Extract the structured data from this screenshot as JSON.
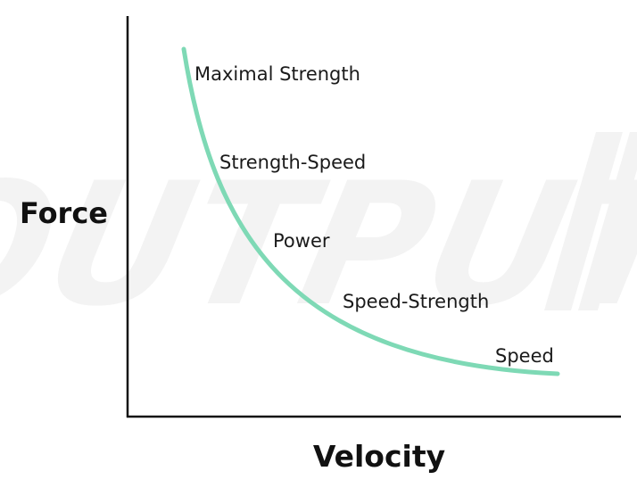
{
  "chart_data": {
    "type": "line",
    "title": "",
    "xlabel": "Velocity",
    "ylabel": "Force",
    "grid": false,
    "legend": "none",
    "series": [
      {
        "name": "",
        "color": "#7ED9B5",
        "shape": "force-velocity hyperbolic curve (qualitative, no numeric axes)"
      }
    ],
    "annotations": [
      {
        "label": "Maximal Strength"
      },
      {
        "label": "Strength-Speed"
      },
      {
        "label": "Power"
      },
      {
        "label": "Speed-Strength"
      },
      {
        "label": "Speed"
      }
    ]
  },
  "watermark": {
    "text": "OUTPUT",
    "color": "#f3f3f3"
  },
  "colors": {
    "axis": "#111111",
    "curve": "#7ED9B5",
    "label": "#1a1a1a"
  }
}
